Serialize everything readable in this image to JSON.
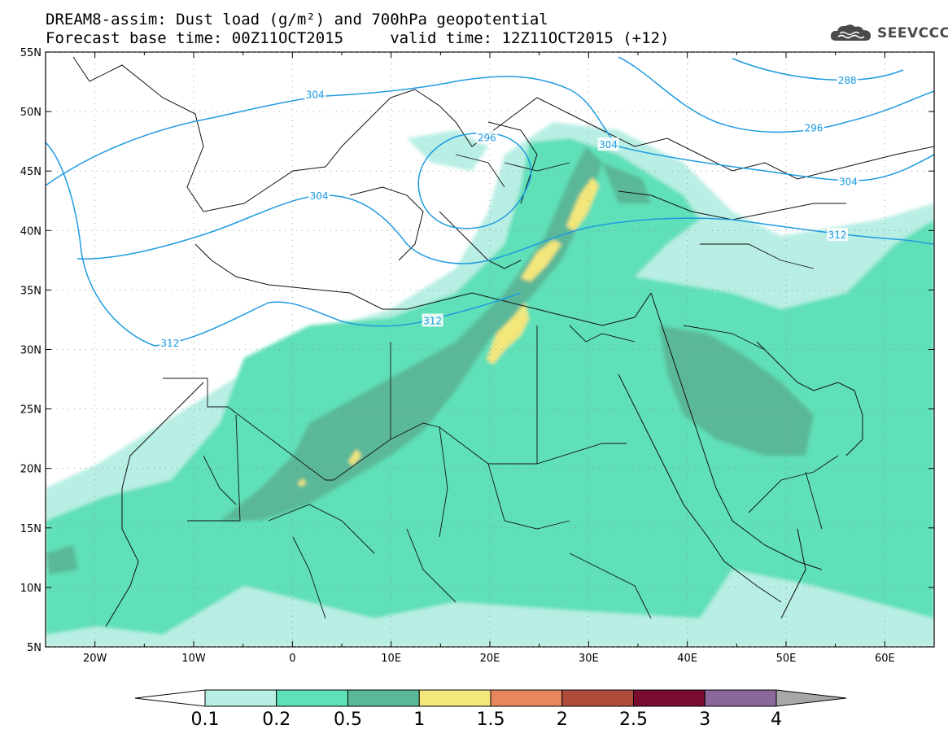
{
  "header": {
    "title_line1": "DREAM8-assim: Dust load (g/m²) and 700hPa geopotential",
    "title_line2": "Forecast base time: 00Z11OCT2015     valid time: 12Z11OCT2015 (+12)"
  },
  "logo": {
    "text": "SEEVCCC",
    "icon": "cloud-icon",
    "color": "#4a4a4a"
  },
  "map": {
    "lon_range": [
      -25,
      65
    ],
    "lat_range": [
      5,
      55
    ],
    "lon_ticks": [
      {
        "value": -20,
        "label": "20W"
      },
      {
        "value": -10,
        "label": "10W"
      },
      {
        "value": 0,
        "label": "0"
      },
      {
        "value": 10,
        "label": "10E"
      },
      {
        "value": 20,
        "label": "20E"
      },
      {
        "value": 30,
        "label": "30E"
      },
      {
        "value": 40,
        "label": "40E"
      },
      {
        "value": 50,
        "label": "50E"
      },
      {
        "value": 60,
        "label": "60E"
      }
    ],
    "lat_ticks": [
      {
        "value": 55,
        "label": "55N"
      },
      {
        "value": 50,
        "label": "50N"
      },
      {
        "value": 45,
        "label": "45N"
      },
      {
        "value": 40,
        "label": "40N"
      },
      {
        "value": 35,
        "label": "35N"
      },
      {
        "value": 30,
        "label": "30N"
      },
      {
        "value": 25,
        "label": "25N"
      },
      {
        "value": 20,
        "label": "20N"
      },
      {
        "value": 15,
        "label": "15N"
      },
      {
        "value": 10,
        "label": "10N"
      },
      {
        "value": 5,
        "label": "5N"
      }
    ],
    "contour_color": "#1f9be0",
    "contour_labels": [
      {
        "text": "304",
        "lon": 2.3,
        "lat": 51.4
      },
      {
        "text": "296",
        "lon": 19.7,
        "lat": 47.8
      },
      {
        "text": "304",
        "lon": 32.0,
        "lat": 47.2
      },
      {
        "text": "288",
        "lon": 56.2,
        "lat": 52.6
      },
      {
        "text": "296",
        "lon": 52.8,
        "lat": 48.6
      },
      {
        "text": "304",
        "lon": 2.7,
        "lat": 42.9
      },
      {
        "text": "304",
        "lon": 56.3,
        "lat": 44.1
      },
      {
        "text": "312",
        "lon": 55.2,
        "lat": 39.6
      },
      {
        "text": "312",
        "lon": 14.2,
        "lat": 32.4
      },
      {
        "text": "312",
        "lon": -12.4,
        "lat": 30.5
      }
    ]
  },
  "colorbar": {
    "labels": [
      "0.1",
      "0.2",
      "0.5",
      "1",
      "1.5",
      "2",
      "2.5",
      "3",
      "4"
    ],
    "colors": [
      "#ffffff",
      "#b8eee4",
      "#5ee0b8",
      "#5ab898",
      "#f3e67a",
      "#e8865e",
      "#b04c3c",
      "#7a0c30",
      "#8a689a",
      "#a8a8a8"
    ]
  }
}
